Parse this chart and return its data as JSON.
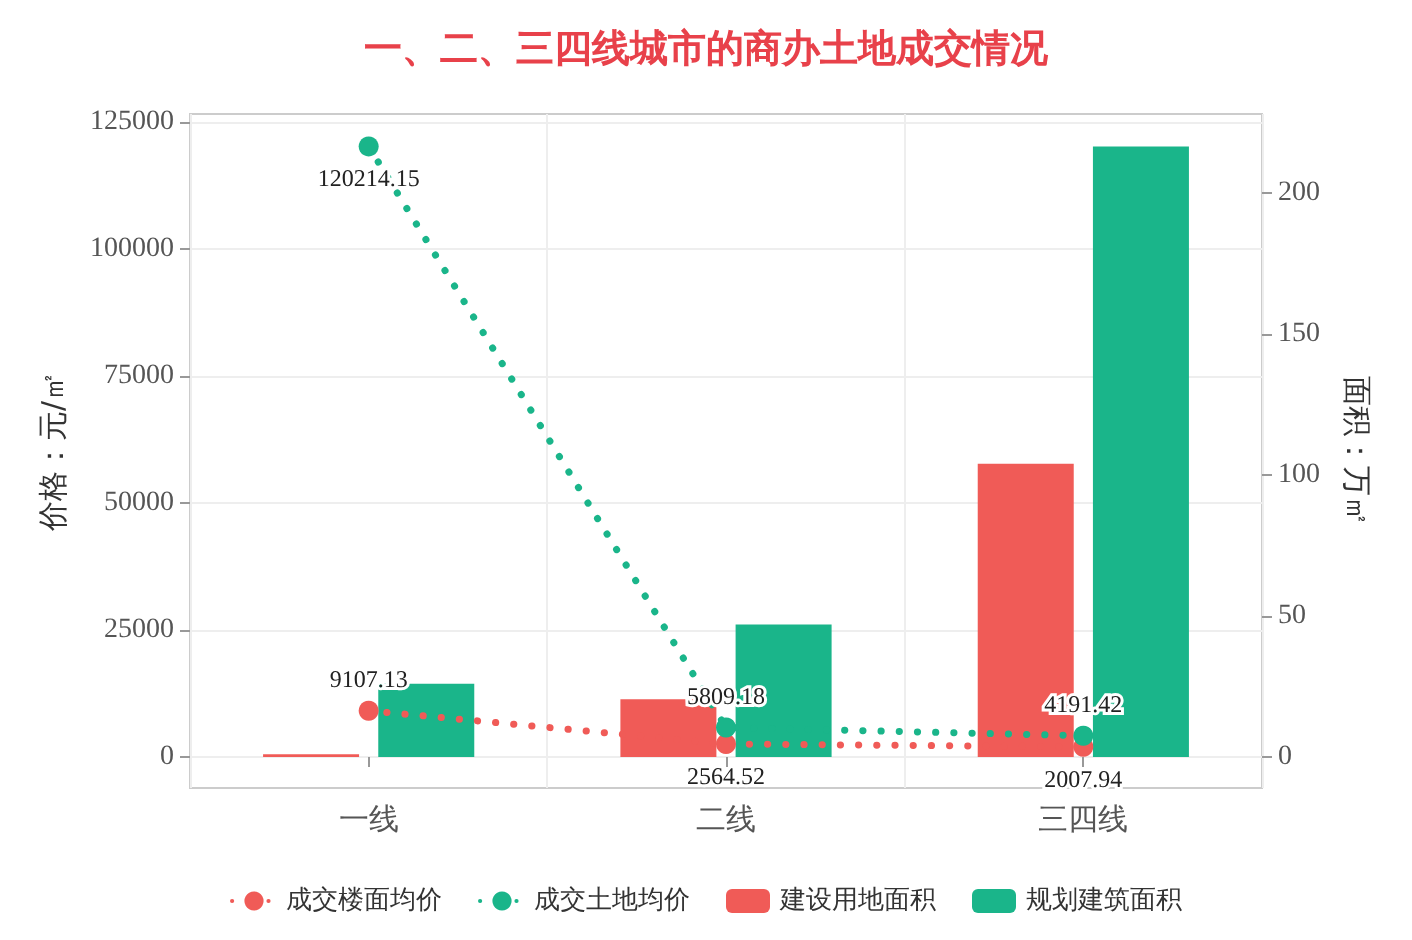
{
  "chart_data": {
    "type": "bar",
    "title": "一、二、三四线城市的商办土地成交情况",
    "ylabel": "价格：元/㎡",
    "y2label": "面积：万㎡",
    "categories": [
      "一线",
      "二线",
      "三四线"
    ],
    "series": [
      {
        "name": "成交楼面均价",
        "type": "line",
        "color": "#f05b57",
        "values": [
          9107.13,
          2564.52,
          2007.94
        ],
        "marker": "circle",
        "line_style": "dotted",
        "data_labels": true
      },
      {
        "name": "成交土地均价",
        "type": "line",
        "color": "#1ab58a",
        "values": [
          120214.15,
          5809.18,
          4191.42
        ],
        "marker": "circle",
        "line_style": "dotted",
        "data_labels": true
      },
      {
        "name": "建设用地面积",
        "axis": "y2",
        "color": "#f05b57",
        "values": [
          1,
          20.5,
          104
        ]
      },
      {
        "name": "规划建筑面积",
        "axis": "y2",
        "color": "#1ab58a",
        "values": [
          26,
          47,
          216.5
        ]
      }
    ],
    "ylim": [
      -6100,
      126600
    ],
    "yticks": [
      0,
      25000,
      50000,
      75000,
      100000,
      125000
    ],
    "y2lim": [
      -11,
      228
    ],
    "y2ticks": [
      0,
      50,
      100,
      150,
      200
    ],
    "grid": true,
    "legend": "bottom"
  }
}
